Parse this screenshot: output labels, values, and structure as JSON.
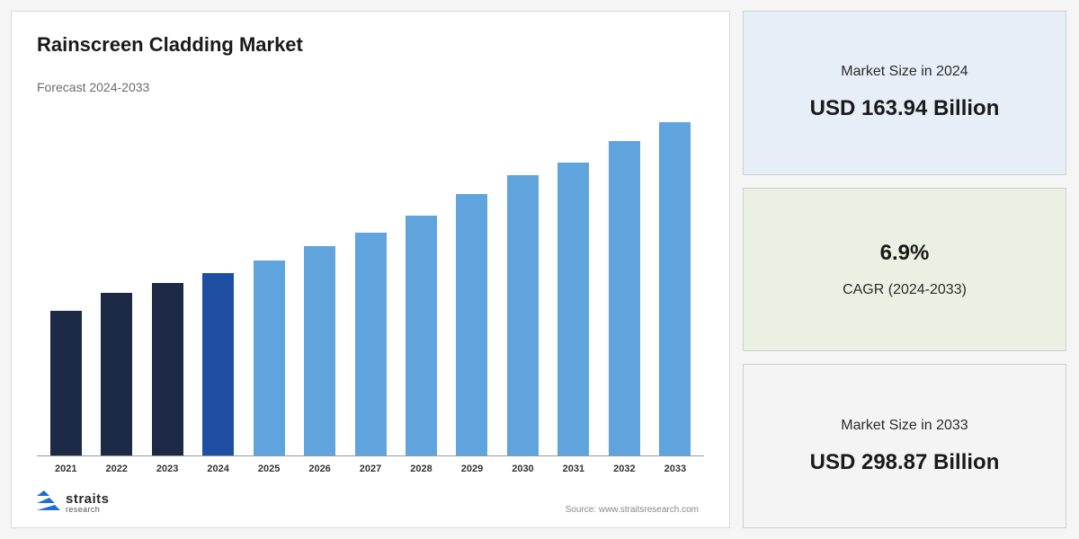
{
  "chart": {
    "type": "bar",
    "title": "Rainscreen Cladding Market",
    "subtitle": "Forecast 2024-2033",
    "source": "Source: www.straitsresearch.com",
    "logo_main": "straits",
    "logo_sub": "research",
    "logo_arrow_color": "#1f6fd1",
    "background_color": "#ffffff",
    "axis_color": "#999999",
    "title_fontsize": 22,
    "subtitle_fontsize": 14,
    "xlabel_fontsize": 11,
    "categories": [
      "2021",
      "2022",
      "2023",
      "2024",
      "2025",
      "2026",
      "2027",
      "2028",
      "2029",
      "2030",
      "2031",
      "2032",
      "2033"
    ],
    "values": [
      130,
      146,
      155,
      164,
      175,
      188,
      200,
      215,
      235,
      252,
      263,
      282,
      299
    ],
    "ylim": [
      0,
      300
    ],
    "bar_width_pct": 62,
    "colors": {
      "historical": "#1c2a45",
      "current": "#1f4fa3",
      "forecast": "#5fa4dd"
    },
    "color_map": [
      "historical",
      "historical",
      "historical",
      "current",
      "forecast",
      "forecast",
      "forecast",
      "forecast",
      "forecast",
      "forecast",
      "forecast",
      "forecast",
      "forecast"
    ]
  },
  "cards": [
    {
      "label": "Market Size in 2024",
      "value": "USD 163.94 Billion",
      "bg": "#e8eef8"
    },
    {
      "label": "CAGR (2024-2033)",
      "value": "6.9%",
      "bg": "#eaf1e2",
      "value_first": true
    },
    {
      "label": "Market Size in 2033",
      "value": "USD 298.87 Billion",
      "bg": "#f4f4f4"
    }
  ],
  "page_bg": "#f5f5f5",
  "card_border": "#cfcfcf"
}
